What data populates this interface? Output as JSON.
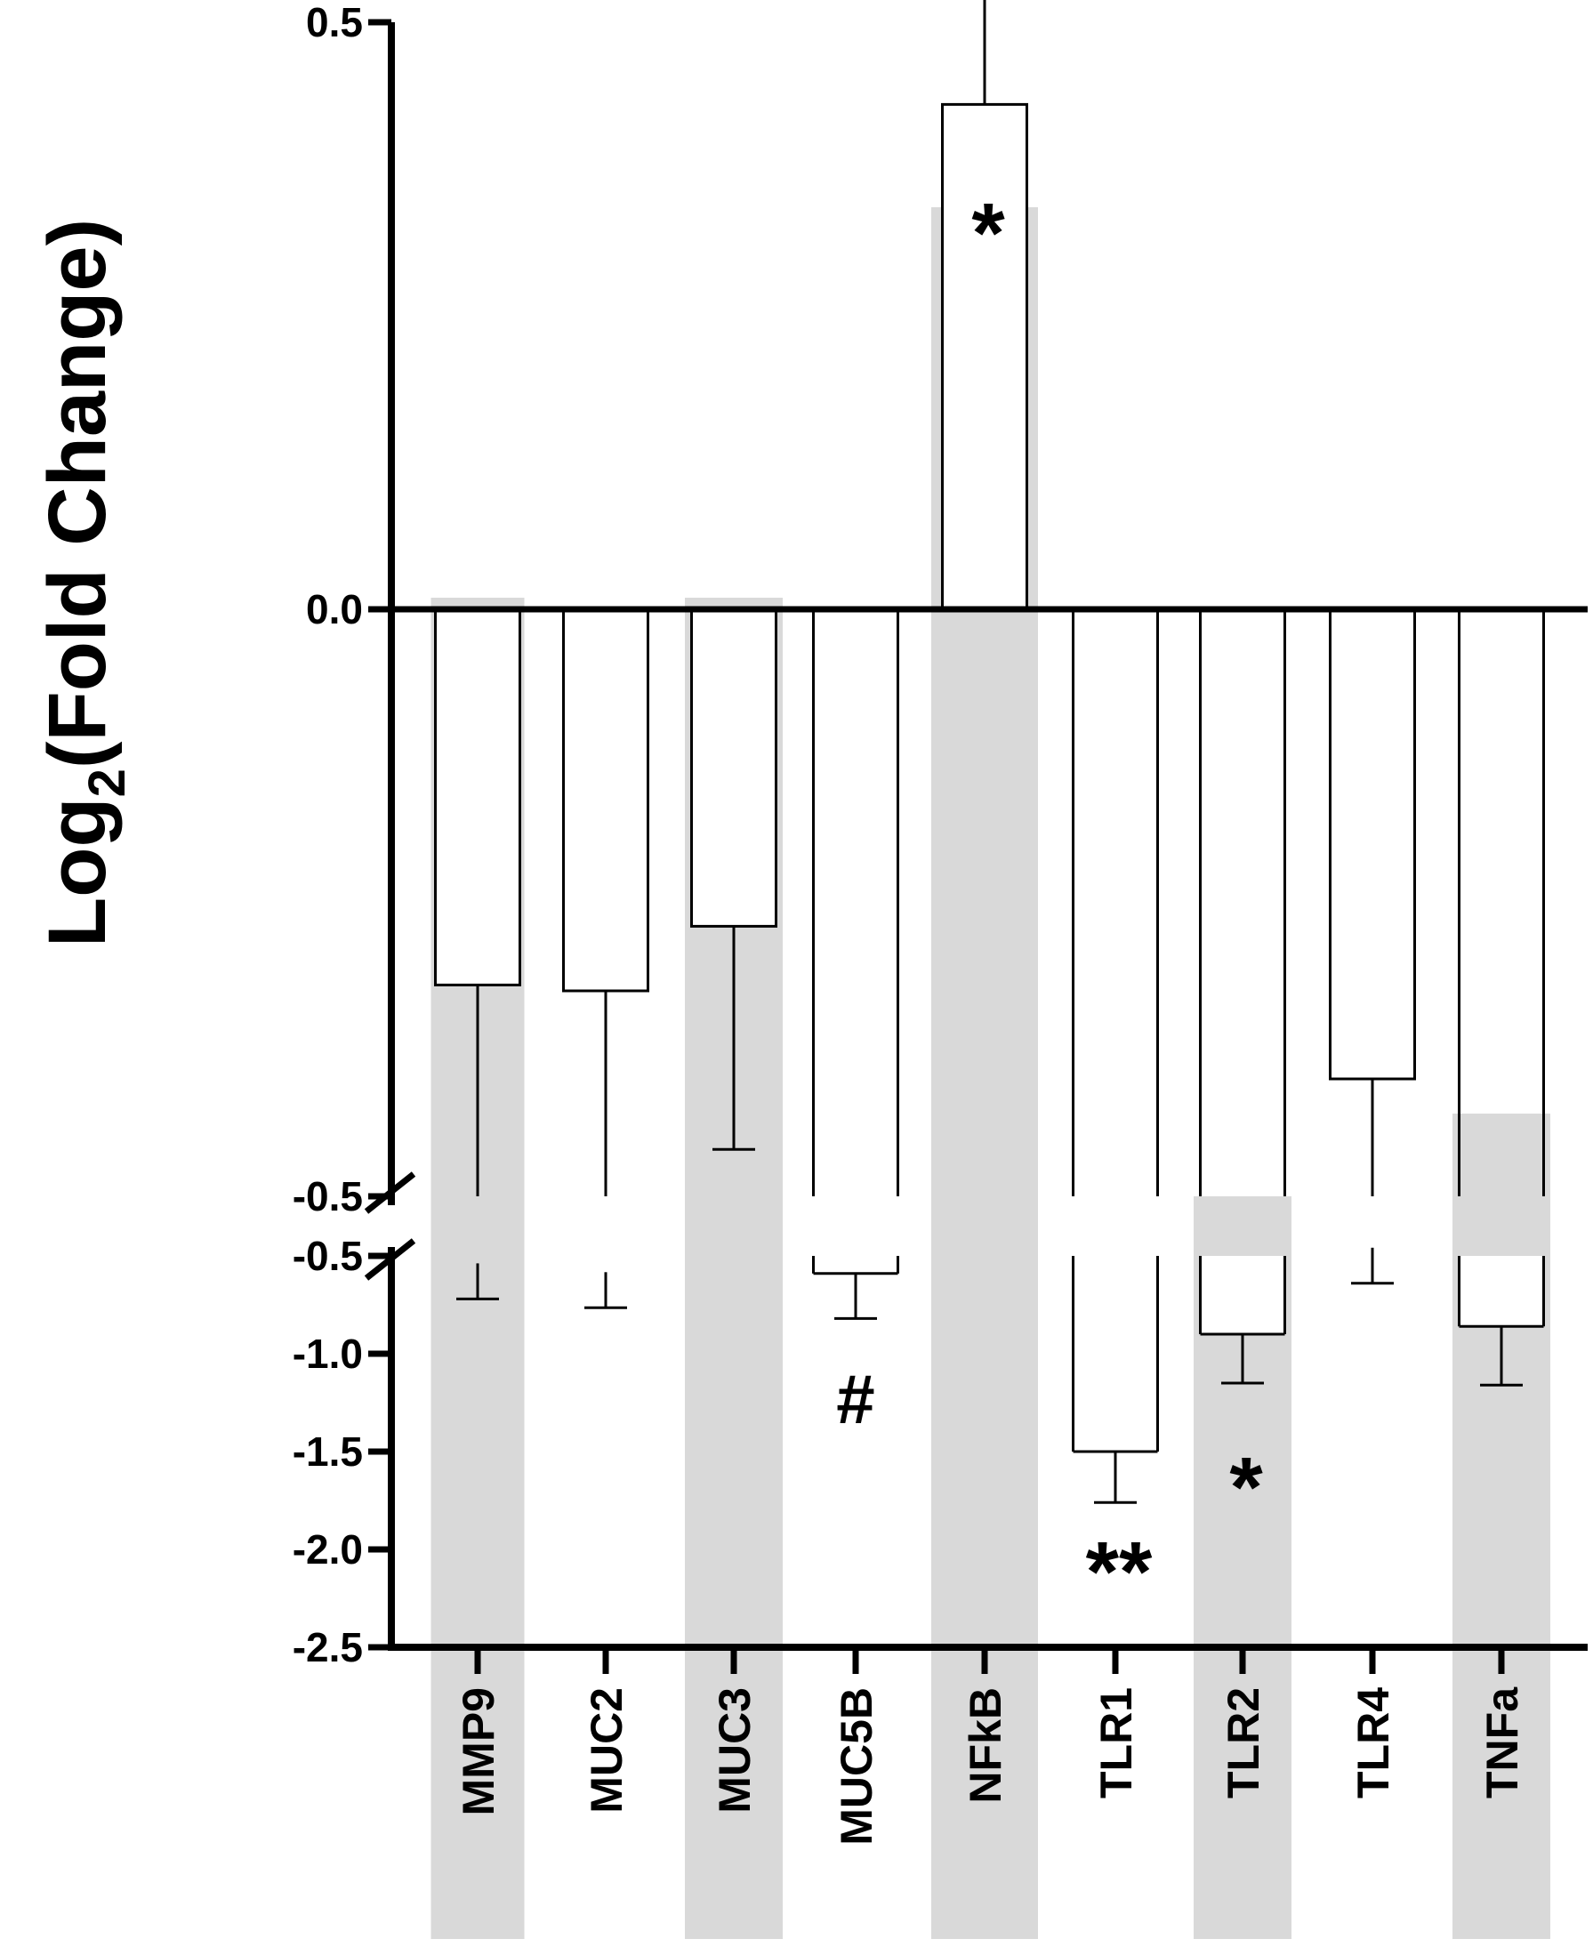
{
  "chart_data": {
    "type": "bar",
    "ylabel": {
      "prefix": "Log",
      "subscript": "2",
      "suffix": "(Fold Change)"
    },
    "axis_break": true,
    "upper_segment": {
      "ylim": [
        -0.5,
        0.5
      ],
      "ticks": [
        "0.5",
        "0.0",
        "-0.5"
      ]
    },
    "lower_segment": {
      "ylim": [
        -2.5,
        -0.5
      ],
      "ticks": [
        "-0.5",
        "-1.0",
        "-1.5",
        "-2.0",
        "-2.5"
      ]
    },
    "categories": [
      "MMP9",
      "MUC2",
      "MUC3",
      "MUC5B",
      "NFkB",
      "TLR1",
      "TLR2",
      "TLR4",
      "TNFa"
    ],
    "values": [
      -0.32,
      -0.325,
      -0.27,
      -0.59,
      0.43,
      -1.5,
      -0.9,
      -0.4,
      -0.86
    ],
    "error": [
      0.4,
      0.44,
      0.19,
      0.23,
      0.15,
      0.26,
      0.25,
      0.24,
      0.3
    ],
    "highlighted": [
      true,
      false,
      true,
      false,
      true,
      false,
      true,
      false,
      true
    ],
    "significance": [
      "",
      "",
      "",
      "#",
      "*",
      "**",
      "*",
      "",
      ""
    ],
    "highlight_color": "#d9d9d9",
    "grid": false
  }
}
